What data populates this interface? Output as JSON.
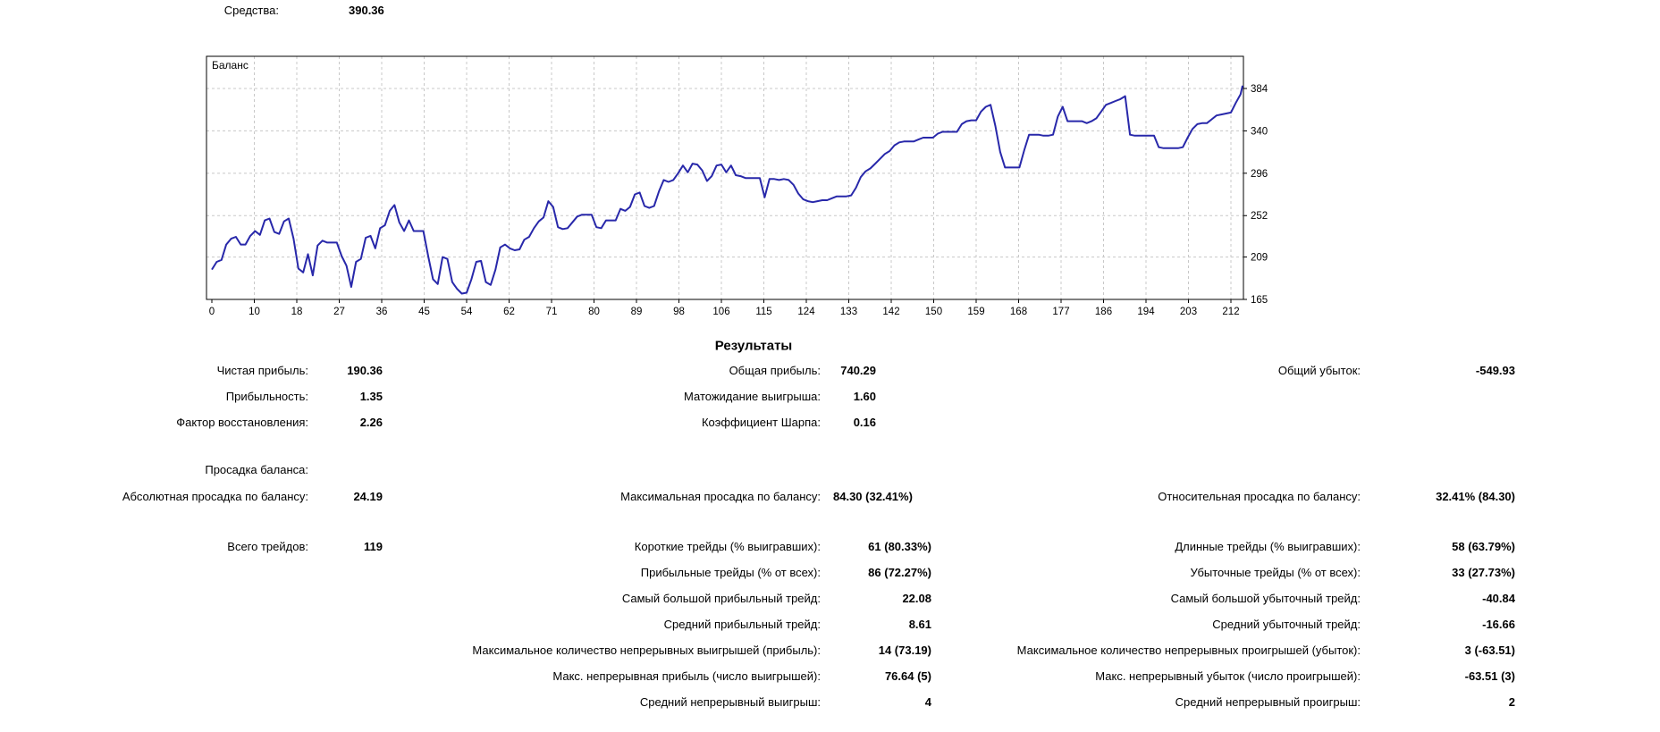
{
  "top": {
    "funds_label": "Средства:",
    "funds_value": "390.36"
  },
  "results_heading": "Результаты",
  "chart_data": {
    "type": "line",
    "title": "Баланс",
    "legend_position": "top-left-inside",
    "grid": "dashed",
    "line_color": "#2828aa",
    "grid_color": "#c8c8c8",
    "frame_color": "#000000",
    "xlabel": "",
    "ylabel": "",
    "x_ticks": [
      0,
      10,
      18,
      27,
      36,
      45,
      54,
      62,
      71,
      80,
      89,
      98,
      106,
      115,
      124,
      133,
      142,
      150,
      159,
      168,
      177,
      186,
      194,
      203,
      212
    ],
    "y_ticks": [
      165,
      209,
      252,
      296,
      340,
      384
    ],
    "xlim": [
      0,
      215
    ],
    "ylim": [
      165,
      418
    ],
    "points": [
      [
        0,
        196
      ],
      [
        1,
        204
      ],
      [
        2,
        206
      ],
      [
        3,
        222
      ],
      [
        4,
        228
      ],
      [
        5,
        230
      ],
      [
        6,
        222
      ],
      [
        7,
        222
      ],
      [
        8,
        231
      ],
      [
        9,
        236
      ],
      [
        10,
        232
      ],
      [
        11,
        247
      ],
      [
        12,
        249
      ],
      [
        13,
        235
      ],
      [
        14,
        233
      ],
      [
        15,
        246
      ],
      [
        16,
        249
      ],
      [
        17,
        228
      ],
      [
        18,
        197
      ],
      [
        19,
        193
      ],
      [
        20,
        212
      ],
      [
        21,
        190
      ],
      [
        22,
        221
      ],
      [
        23,
        226
      ],
      [
        24,
        224
      ],
      [
        25,
        224
      ],
      [
        26,
        224
      ],
      [
        27,
        210
      ],
      [
        28,
        200
      ],
      [
        29,
        178
      ],
      [
        30,
        204
      ],
      [
        31,
        207
      ],
      [
        32,
        229
      ],
      [
        33,
        231
      ],
      [
        34,
        218
      ],
      [
        35,
        239
      ],
      [
        36,
        242
      ],
      [
        37,
        257
      ],
      [
        38,
        263
      ],
      [
        39,
        245
      ],
      [
        40,
        236
      ],
      [
        41,
        247
      ],
      [
        42,
        236
      ],
      [
        43,
        236
      ],
      [
        44,
        236
      ],
      [
        45,
        210
      ],
      [
        46,
        186
      ],
      [
        47,
        181
      ],
      [
        48,
        209
      ],
      [
        49,
        207
      ],
      [
        50,
        183
      ],
      [
        51,
        176
      ],
      [
        52,
        171
      ],
      [
        53,
        172
      ],
      [
        54,
        186
      ],
      [
        55,
        204
      ],
      [
        56,
        205
      ],
      [
        57,
        183
      ],
      [
        58,
        180
      ],
      [
        59,
        196
      ],
      [
        60,
        219
      ],
      [
        61,
        222
      ],
      [
        62,
        218
      ],
      [
        63,
        216
      ],
      [
        64,
        217
      ],
      [
        65,
        227
      ],
      [
        66,
        230
      ],
      [
        67,
        239
      ],
      [
        68,
        246
      ],
      [
        69,
        250
      ],
      [
        70,
        267
      ],
      [
        71,
        261
      ],
      [
        72,
        240
      ],
      [
        73,
        238
      ],
      [
        74,
        239
      ],
      [
        75,
        245
      ],
      [
        76,
        251
      ],
      [
        77,
        253
      ],
      [
        78,
        253
      ],
      [
        79,
        253
      ],
      [
        80,
        240
      ],
      [
        81,
        239
      ],
      [
        82,
        247
      ],
      [
        83,
        247
      ],
      [
        84,
        247
      ],
      [
        85,
        259
      ],
      [
        86,
        257
      ],
      [
        87,
        261
      ],
      [
        88,
        274
      ],
      [
        89,
        276
      ],
      [
        90,
        262
      ],
      [
        91,
        260
      ],
      [
        92,
        262
      ],
      [
        93,
        277
      ],
      [
        94,
        289
      ],
      [
        95,
        287
      ],
      [
        96,
        289
      ],
      [
        97,
        296
      ],
      [
        98,
        304
      ],
      [
        99,
        297
      ],
      [
        100,
        306
      ],
      [
        101,
        305
      ],
      [
        102,
        299
      ],
      [
        103,
        288
      ],
      [
        104,
        293
      ],
      [
        105,
        304
      ],
      [
        106,
        305
      ],
      [
        107,
        297
      ],
      [
        108,
        304
      ],
      [
        109,
        294
      ],
      [
        110,
        293
      ],
      [
        111,
        291
      ],
      [
        112,
        291
      ],
      [
        113,
        291
      ],
      [
        114,
        291
      ],
      [
        115,
        271
      ],
      [
        116,
        290
      ],
      [
        117,
        290
      ],
      [
        118,
        289
      ],
      [
        119,
        290
      ],
      [
        120,
        289
      ],
      [
        121,
        284
      ],
      [
        122,
        275
      ],
      [
        123,
        269
      ],
      [
        124,
        267
      ],
      [
        125,
        266
      ],
      [
        126,
        267
      ],
      [
        127,
        268
      ],
      [
        128,
        268
      ],
      [
        129,
        270
      ],
      [
        130,
        272
      ],
      [
        131,
        272
      ],
      [
        132,
        272
      ],
      [
        133,
        273
      ],
      [
        134,
        281
      ],
      [
        135,
        292
      ],
      [
        136,
        298
      ],
      [
        137,
        301
      ],
      [
        138,
        306
      ],
      [
        139,
        311
      ],
      [
        140,
        316
      ],
      [
        141,
        319
      ],
      [
        142,
        325
      ],
      [
        143,
        328
      ],
      [
        144,
        329
      ],
      [
        145,
        329
      ],
      [
        146,
        329
      ],
      [
        147,
        331
      ],
      [
        148,
        333
      ],
      [
        149,
        333
      ],
      [
        150,
        333
      ],
      [
        151,
        337
      ],
      [
        152,
        339
      ],
      [
        153,
        339
      ],
      [
        154,
        339
      ],
      [
        155,
        339
      ],
      [
        156,
        347
      ],
      [
        157,
        350
      ],
      [
        158,
        351
      ],
      [
        159,
        351
      ],
      [
        160,
        360
      ],
      [
        161,
        365
      ],
      [
        162,
        367
      ],
      [
        163,
        345
      ],
      [
        164,
        318
      ],
      [
        165,
        302
      ],
      [
        166,
        302
      ],
      [
        167,
        302
      ],
      [
        168,
        302
      ],
      [
        169,
        320
      ],
      [
        170,
        336
      ],
      [
        171,
        336
      ],
      [
        172,
        336
      ],
      [
        173,
        335
      ],
      [
        174,
        335
      ],
      [
        175,
        336
      ],
      [
        176,
        355
      ],
      [
        177,
        365
      ],
      [
        178,
        350
      ],
      [
        179,
        350
      ],
      [
        180,
        350
      ],
      [
        181,
        350
      ],
      [
        182,
        348
      ],
      [
        183,
        350
      ],
      [
        184,
        353
      ],
      [
        185,
        360
      ],
      [
        186,
        367
      ],
      [
        187,
        369
      ],
      [
        188,
        371
      ],
      [
        189,
        373
      ],
      [
        190,
        376
      ],
      [
        191,
        336
      ],
      [
        192,
        335
      ],
      [
        193,
        335
      ],
      [
        194,
        335
      ],
      [
        195,
        335
      ],
      [
        196,
        335
      ],
      [
        197,
        323
      ],
      [
        198,
        322
      ],
      [
        199,
        322
      ],
      [
        200,
        322
      ],
      [
        201,
        322
      ],
      [
        202,
        323
      ],
      [
        203,
        333
      ],
      [
        204,
        342
      ],
      [
        205,
        347
      ],
      [
        206,
        348
      ],
      [
        207,
        348
      ],
      [
        208,
        352
      ],
      [
        209,
        356
      ],
      [
        210,
        357
      ],
      [
        211,
        358
      ],
      [
        212,
        359
      ],
      [
        213,
        369
      ],
      [
        214,
        378
      ],
      [
        215,
        387
      ]
    ]
  },
  "stat_rows": [
    {
      "cells": [
        {
          "slot": "ll",
          "text": "Чистая прибыль:"
        },
        {
          "slot": "lv",
          "text": "190.36"
        },
        {
          "slot": "ml",
          "text": "Общая прибыль:"
        },
        {
          "slot": "mv",
          "text": "740.29"
        },
        {
          "slot": "rl",
          "text": "Общий убыток:"
        },
        {
          "slot": "rv",
          "text": "-549.93"
        }
      ]
    },
    {
      "cells": [
        {
          "slot": "ll",
          "text": "Прибыльность:"
        },
        {
          "slot": "lv",
          "text": "1.35"
        },
        {
          "slot": "ml",
          "text": "Матожидание выигрыша:"
        },
        {
          "slot": "mv",
          "text": "1.60"
        }
      ]
    },
    {
      "cells": [
        {
          "slot": "ll",
          "text": "Фактор восстановления:"
        },
        {
          "slot": "lv",
          "text": "2.26"
        },
        {
          "slot": "ml",
          "text": "Коэффициент Шарпа:"
        },
        {
          "slot": "mv",
          "text": "0.16"
        }
      ]
    },
    {
      "cells": [
        {
          "slot": "ll",
          "text": "Просадка баланса:"
        }
      ]
    },
    {
      "cells": [
        {
          "slot": "ll",
          "text": "Абсолютная просадка по балансу:"
        },
        {
          "slot": "lv",
          "text": "24.19"
        },
        {
          "slot": "ml",
          "text": "Максимальная просадка по балансу:"
        },
        {
          "slot": "mvd",
          "text": "84.30 (32.41%)"
        },
        {
          "slot": "rl",
          "text": "Относительная просадка по балансу:"
        },
        {
          "slot": "rv",
          "text": "32.41% (84.30)"
        }
      ]
    },
    {
      "cells": [
        {
          "slot": "ll",
          "text": "Всего трейдов:"
        },
        {
          "slot": "lv",
          "text": "119"
        },
        {
          "slot": "ml",
          "text": "Короткие трейды (% выигравших):"
        },
        {
          "slot": "mvt",
          "text": "61 (80.33%)"
        },
        {
          "slot": "rl",
          "text": "Длинные трейды (% выигравших):"
        },
        {
          "slot": "rv",
          "text": "58 (63.79%)"
        }
      ]
    },
    {
      "cells": [
        {
          "slot": "ml",
          "text": "Прибыльные трейды (% от всех):"
        },
        {
          "slot": "mvt",
          "text": "86 (72.27%)"
        },
        {
          "slot": "rl",
          "text": "Убыточные трейды (% от всех):"
        },
        {
          "slot": "rv",
          "text": "33 (27.73%)"
        }
      ]
    },
    {
      "cells": [
        {
          "slot": "ml",
          "text": "Самый большой прибыльный трейд:"
        },
        {
          "slot": "mvt",
          "text": "22.08"
        },
        {
          "slot": "rl",
          "text": "Самый большой убыточный трейд:"
        },
        {
          "slot": "rv",
          "text": "-40.84"
        }
      ]
    },
    {
      "cells": [
        {
          "slot": "ml",
          "text": "Средний прибыльный трейд:"
        },
        {
          "slot": "mvt",
          "text": "8.61"
        },
        {
          "slot": "rl",
          "text": "Средний убыточный трейд:"
        },
        {
          "slot": "rv",
          "text": "-16.66"
        }
      ]
    },
    {
      "cells": [
        {
          "slot": "ml",
          "text": "Максимальное количество непрерывных выигрышей (прибыль):"
        },
        {
          "slot": "mvt",
          "text": "14 (73.19)"
        },
        {
          "slot": "rl",
          "text": "Максимальное количество непрерывных проигрышей (убыток):"
        },
        {
          "slot": "rv",
          "text": "3 (-63.51)"
        }
      ]
    },
    {
      "cells": [
        {
          "slot": "ml",
          "text": "Макс. непрерывная прибыль (число выигрышей):"
        },
        {
          "slot": "mvt",
          "text": "76.64 (5)"
        },
        {
          "slot": "rl",
          "text": "Макс. непрерывный убыток (число проигрышей):"
        },
        {
          "slot": "rv",
          "text": "-63.51 (3)"
        }
      ]
    },
    {
      "cells": [
        {
          "slot": "ml",
          "text": "Средний непрерывный выигрыш:"
        },
        {
          "slot": "mvt",
          "text": "4"
        },
        {
          "slot": "rl",
          "text": "Средний непрерывный проигрыш:"
        },
        {
          "slot": "rv",
          "text": "2"
        }
      ]
    }
  ]
}
